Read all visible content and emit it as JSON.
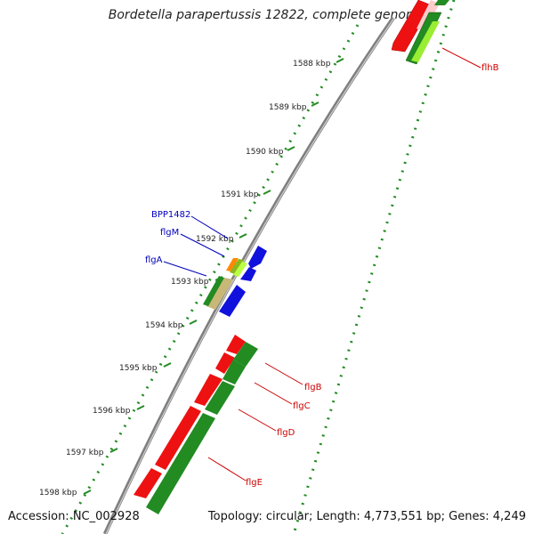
{
  "title": "Bordetella parapertussis 12822, complete genome",
  "footer": {
    "accession": "Accession: NC_002928",
    "topology": "Topology: circular; Length: 4,773,551 bp; Genes: 4,249"
  },
  "ticks": [
    {
      "label": "1588 kbp"
    },
    {
      "label": "1589 kbp"
    },
    {
      "label": "1590 kbp"
    },
    {
      "label": "1591 kbp"
    },
    {
      "label": "1592 kbp"
    },
    {
      "label": "1593 kbp"
    },
    {
      "label": "1594 kbp"
    },
    {
      "label": "1595 kbp"
    },
    {
      "label": "1596 kbp"
    },
    {
      "label": "1597 kbp"
    },
    {
      "label": "1598 kbp"
    }
  ],
  "gene_labels": [
    {
      "name": "flhB",
      "color": "#cc0000"
    },
    {
      "name": "BPP1482",
      "color": "#0000bb"
    },
    {
      "name": "flgM",
      "color": "#0000bb"
    },
    {
      "name": "flgA",
      "color": "#0000bb"
    },
    {
      "name": "flgB",
      "color": "#cc0000"
    },
    {
      "name": "flgC",
      "color": "#cc0000"
    },
    {
      "name": "flgD",
      "color": "#cc0000"
    },
    {
      "name": "flgE",
      "color": "#cc0000"
    }
  ],
  "colors": {
    "backbone": "#8a8a8a",
    "dots": "#228b22",
    "red_gene": "#ee1111",
    "green_gene": "#228b22",
    "blue_gene": "#1111dd",
    "lime_gene": "#99ee33"
  }
}
